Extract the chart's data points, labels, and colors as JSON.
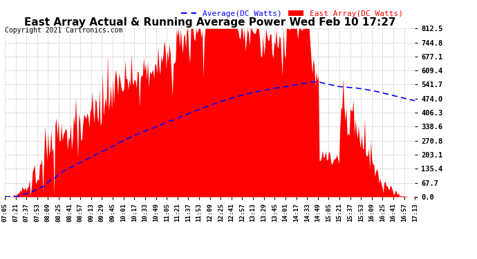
{
  "title": "East Array Actual & Running Average Power Wed Feb 10 17:27",
  "copyright": "Copyright 2021 Cartronics.com",
  "legend_avg": "Average(DC Watts)",
  "legend_east": "East Array(DC Watts)",
  "ylabel_ticks": [
    0.0,
    67.7,
    135.4,
    203.1,
    270.8,
    338.6,
    406.3,
    474.0,
    541.7,
    609.4,
    677.1,
    744.8,
    812.5
  ],
  "ymax": 812.5,
  "bg_color": "#ffffff",
  "fill_color": "#ff0000",
  "avg_color": "#0000ff",
  "grid_color": "#888888",
  "title_color": "#000000",
  "copyright_color": "#000000",
  "legend_avg_color": "#0000ff",
  "legend_east_color": "#ff0000",
  "x_tick_labels": [
    "07:05",
    "07:21",
    "07:37",
    "07:53",
    "08:09",
    "08:25",
    "08:41",
    "08:57",
    "09:13",
    "09:29",
    "09:45",
    "10:01",
    "10:17",
    "10:33",
    "10:49",
    "11:05",
    "11:21",
    "11:37",
    "11:53",
    "12:09",
    "12:25",
    "12:41",
    "12:57",
    "13:13",
    "13:29",
    "13:45",
    "14:01",
    "14:17",
    "14:33",
    "14:49",
    "15:05",
    "15:21",
    "15:37",
    "15:53",
    "16:09",
    "16:25",
    "16:41",
    "16:57",
    "17:13"
  ]
}
